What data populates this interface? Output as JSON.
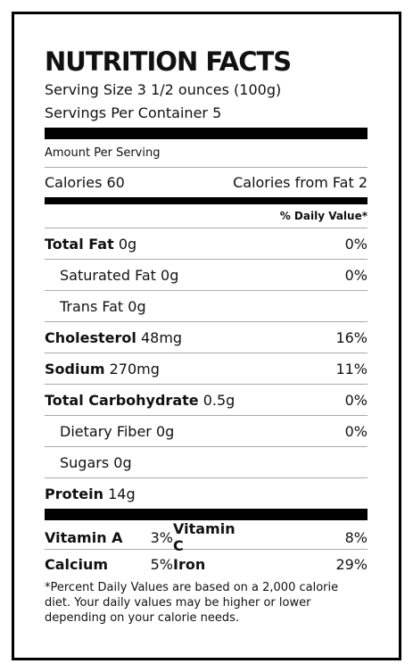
{
  "header": {
    "title": "NUTRITION FACTS",
    "serving_size": "Serving Size 3 1/2 ounces (100g)",
    "servings_per_container": "Servings Per Container 5"
  },
  "amount_per_serving": "Amount Per Serving",
  "calories": {
    "label": "Calories 60",
    "from_fat": "Calories from Fat 2"
  },
  "daily_value_header": "% Daily Value*",
  "nutrients": [
    {
      "name": "Total Fat",
      "amount": "0g",
      "dv": "0%"
    },
    {
      "name": "Saturated Fat",
      "amount": "0g",
      "dv": "0%"
    },
    {
      "name": "Trans Fat",
      "amount": "0g"
    },
    {
      "name": "Cholesterol",
      "amount": "48mg",
      "dv": "16%"
    },
    {
      "name": "Sodium",
      "amount": "270mg",
      "dv": "11%"
    },
    {
      "name": "Total Carbohydrate",
      "amount": "0.5g",
      "dv": "0%"
    },
    {
      "name": "Dietary Fiber",
      "amount": "0g",
      "dv": "0%"
    },
    {
      "name": "Sugars",
      "amount": "0g"
    },
    {
      "name": "Protein",
      "amount": "14g"
    }
  ],
  "vitamins": [
    [
      {
        "name": "Vitamin A",
        "dv": "3%"
      },
      {
        "name": "Vitamin C",
        "dv": "8%"
      }
    ],
    [
      {
        "name": "Calcium",
        "dv": "5%"
      },
      {
        "name": "Iron",
        "dv": "29%"
      }
    ]
  ],
  "footnote": "*Percent Daily Values are based on a 2,000 calorie diet. Your daily values may be higher or lower depending on your calorie needs."
}
